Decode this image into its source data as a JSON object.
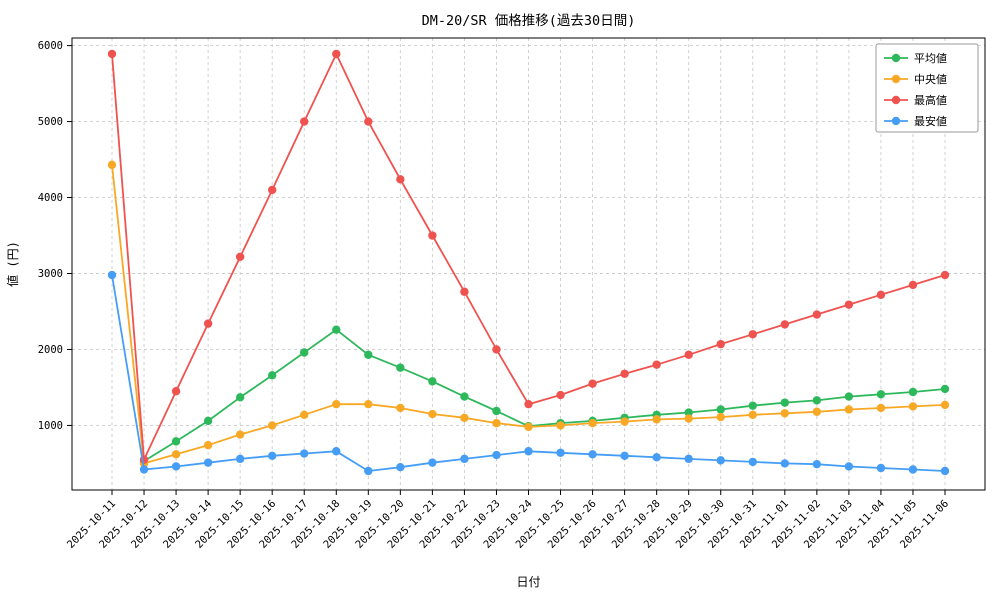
{
  "chart_data": {
    "type": "line",
    "title": "DM-20/SR 価格推移(過去30日間)",
    "xlabel": "日付",
    "ylabel": "値 (円)",
    "x": [
      "2025-10-11",
      "2025-10-12",
      "2025-10-13",
      "2025-10-14",
      "2025-10-15",
      "2025-10-16",
      "2025-10-17",
      "2025-10-18",
      "2025-10-19",
      "2025-10-20",
      "2025-10-21",
      "2025-10-22",
      "2025-10-23",
      "2025-10-24",
      "2025-10-25",
      "2025-10-26",
      "2025-10-27",
      "2025-10-28",
      "2025-10-29",
      "2025-10-30",
      "2025-10-31",
      "2025-11-01",
      "2025-11-02",
      "2025-11-03",
      "2025-11-04",
      "2025-11-05",
      "2025-11-06"
    ],
    "series": [
      {
        "name": "平均値",
        "color": "#2eb85c",
        "values": [
          null,
          530,
          790,
          1060,
          1370,
          1660,
          1960,
          2260,
          1930,
          1760,
          1580,
          1380,
          1190,
          990,
          1030,
          1060,
          1100,
          1140,
          1170,
          1210,
          1260,
          1300,
          1330,
          1380,
          1410,
          1440,
          1480
        ]
      },
      {
        "name": "中央値",
        "color": "#f9a825",
        "values": [
          4430,
          500,
          620,
          740,
          880,
          1000,
          1140,
          1280,
          1280,
          1230,
          1150,
          1100,
          1030,
          980,
          1000,
          1030,
          1050,
          1080,
          1090,
          1110,
          1140,
          1160,
          1180,
          1210,
          1230,
          1250,
          1270
        ]
      },
      {
        "name": "最高値",
        "color": "#ef5350",
        "values": [
          5890,
          550,
          1450,
          2340,
          3220,
          4100,
          5000,
          5890,
          5000,
          4240,
          3500,
          2760,
          2000,
          1280,
          1400,
          1550,
          1680,
          1800,
          1930,
          2070,
          2200,
          2330,
          2460,
          2590,
          2720,
          2850,
          2980
        ]
      },
      {
        "name": "最安値",
        "color": "#459df5",
        "values": [
          2980,
          420,
          460,
          510,
          560,
          600,
          630,
          660,
          400,
          450,
          510,
          560,
          610,
          660,
          640,
          620,
          600,
          580,
          560,
          540,
          520,
          500,
          490,
          460,
          440,
          420,
          400
        ]
      }
    ],
    "yticks": [
      1000,
      2000,
      3000,
      4000,
      5000,
      6000
    ],
    "ylim": [
      150,
      6100
    ],
    "grid": true,
    "legend_position": "upper right",
    "grid_color": "#cccccc",
    "axis_color": "#000000"
  }
}
